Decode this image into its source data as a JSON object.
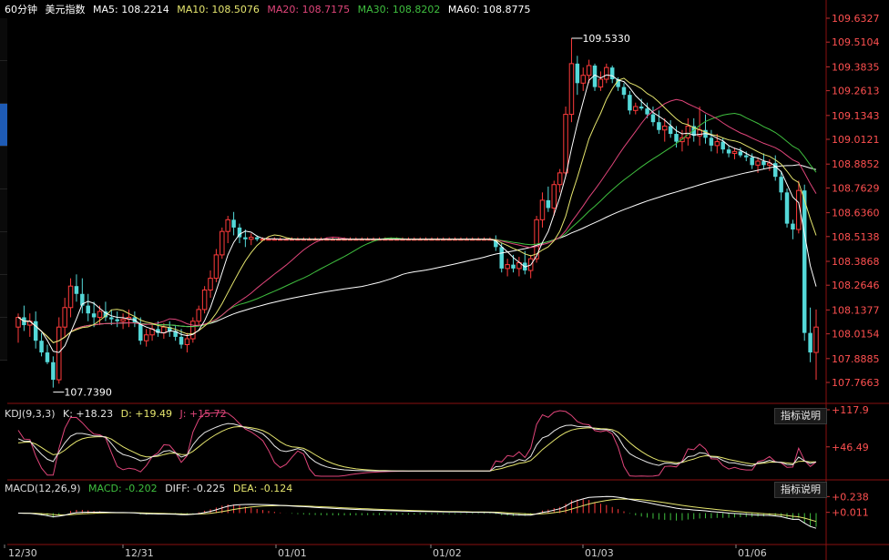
{
  "header": {
    "period": "60分钟",
    "symbol": "美元指数",
    "ma5": "MA5: 108.2214",
    "ma10": "MA10: 108.5076",
    "ma20": "MA20: 108.7175",
    "ma30": "MA30: 108.8202",
    "ma60": "MA60: 108.8775"
  },
  "kdj_header": {
    "name": "KDJ(9,3,3)",
    "k": "K: +18.23",
    "d": "D: +19.49",
    "j": "J: +15.72"
  },
  "macd_header": {
    "name": "MACD(12,26,9)",
    "macd": "MACD: -0.202",
    "diff": "DIFF: -0.225",
    "dea": "DEA: -0.124"
  },
  "indicator_button": "指标说明",
  "price_axis": [
    "109.6327",
    "109.5104",
    "109.3835",
    "109.2613",
    "109.1343",
    "109.0121",
    "108.8852",
    "108.7629",
    "108.6360",
    "108.5138",
    "108.3868",
    "108.2646",
    "108.1377",
    "108.0154",
    "107.8885",
    "107.7663"
  ],
  "kdj_axis": [
    "+117.9",
    "+46.49"
  ],
  "macd_axis": [
    "+0.238",
    "+0.011"
  ],
  "date_axis": [
    "12/30",
    "12/31",
    "01/01",
    "01/02",
    "01/03",
    "01/06"
  ],
  "annotations": {
    "high": "109.5330",
    "low": "107.7390"
  },
  "colors": {
    "up": "#ff3b3b",
    "down": "#54d8d8",
    "ma5": "#ffffff",
    "ma10": "#e6e66e",
    "ma20": "#e0457a",
    "ma30": "#3fbf3f",
    "ma60": "#ffffff",
    "axis": "#ff5050",
    "grid": "#5a0000"
  },
  "chart_data": [
    {
      "type": "candlestick",
      "title": "美元指数 60分钟",
      "x": [
        "12/30",
        "12/31",
        "01/01",
        "01/02",
        "01/03",
        "01/06"
      ],
      "ylim": [
        107.7663,
        109.6327
      ],
      "candles": [
        [
          108.05,
          108.12,
          107.97,
          108.1
        ],
        [
          108.1,
          108.16,
          108.03,
          108.06
        ],
        [
          108.06,
          108.12,
          108.0,
          108.08
        ],
        [
          108.08,
          108.13,
          107.94,
          107.98
        ],
        [
          107.98,
          108.02,
          107.9,
          107.92
        ],
        [
          107.92,
          107.96,
          107.86,
          107.87
        ],
        [
          107.87,
          107.9,
          107.74,
          107.78
        ],
        [
          107.78,
          108.1,
          107.76,
          108.05
        ],
        [
          108.05,
          108.2,
          108.0,
          108.15
        ],
        [
          108.15,
          108.3,
          108.1,
          108.26
        ],
        [
          108.26,
          108.32,
          108.18,
          108.22
        ],
        [
          108.22,
          108.3,
          108.12,
          108.16
        ],
        [
          108.16,
          108.22,
          108.08,
          108.12
        ],
        [
          108.12,
          108.18,
          108.05,
          108.1
        ],
        [
          108.1,
          108.16,
          108.06,
          108.13
        ],
        [
          108.13,
          108.18,
          108.08,
          108.1
        ],
        [
          108.1,
          108.14,
          108.06,
          108.09
        ],
        [
          108.09,
          108.13,
          108.05,
          108.08
        ],
        [
          108.08,
          108.12,
          108.04,
          108.09
        ],
        [
          108.09,
          108.14,
          108.05,
          108.1
        ],
        [
          108.1,
          108.13,
          108.05,
          108.07
        ],
        [
          108.07,
          108.1,
          107.96,
          107.98
        ],
        [
          107.98,
          108.04,
          107.95,
          108.01
        ],
        [
          108.01,
          108.06,
          107.98,
          108.04
        ],
        [
          108.04,
          108.08,
          108.0,
          108.02
        ],
        [
          108.02,
          108.07,
          107.99,
          108.05
        ],
        [
          108.05,
          108.08,
          108.0,
          108.03
        ],
        [
          108.03,
          108.06,
          107.98,
          108.0
        ],
        [
          108.0,
          108.04,
          107.94,
          107.96
        ],
        [
          107.96,
          108.02,
          107.92,
          107.99
        ],
        [
          107.99,
          108.1,
          107.97,
          108.08
        ],
        [
          108.08,
          108.16,
          108.06,
          108.14
        ],
        [
          108.14,
          108.26,
          108.12,
          108.24
        ],
        [
          108.24,
          108.34,
          108.2,
          108.3
        ],
        [
          108.3,
          108.45,
          108.28,
          108.42
        ],
        [
          108.42,
          108.56,
          108.4,
          108.54
        ],
        [
          108.54,
          108.62,
          108.48,
          108.6
        ],
        [
          108.6,
          108.64,
          108.52,
          108.56
        ],
        [
          108.56,
          108.58,
          108.48,
          108.51
        ],
        [
          108.51,
          108.55,
          108.46,
          108.5
        ],
        [
          108.5,
          108.53,
          108.47,
          108.51
        ],
        [
          108.51,
          108.52,
          108.49,
          108.5
        ],
        [
          108.5,
          108.51,
          108.5,
          108.5
        ],
        [
          108.5,
          108.51,
          108.5,
          108.5
        ],
        [
          108.5,
          108.51,
          108.5,
          108.5
        ],
        [
          108.5,
          108.51,
          108.5,
          108.5
        ],
        [
          108.5,
          108.51,
          108.5,
          108.5
        ],
        [
          108.5,
          108.51,
          108.5,
          108.5
        ],
        [
          108.5,
          108.51,
          108.5,
          108.5
        ],
        [
          108.5,
          108.51,
          108.5,
          108.5
        ],
        [
          108.5,
          108.51,
          108.5,
          108.5
        ],
        [
          108.5,
          108.51,
          108.5,
          108.5
        ],
        [
          108.5,
          108.51,
          108.5,
          108.5
        ],
        [
          108.5,
          108.51,
          108.5,
          108.5
        ],
        [
          108.5,
          108.51,
          108.5,
          108.5
        ],
        [
          108.5,
          108.51,
          108.5,
          108.5
        ],
        [
          108.5,
          108.51,
          108.5,
          108.5
        ],
        [
          108.5,
          108.51,
          108.5,
          108.5
        ],
        [
          108.5,
          108.51,
          108.5,
          108.5
        ],
        [
          108.5,
          108.51,
          108.5,
          108.5
        ],
        [
          108.5,
          108.51,
          108.5,
          108.5
        ],
        [
          108.5,
          108.51,
          108.5,
          108.5
        ],
        [
          108.5,
          108.51,
          108.5,
          108.5
        ],
        [
          108.5,
          108.51,
          108.5,
          108.5
        ],
        [
          108.5,
          108.51,
          108.5,
          108.5
        ],
        [
          108.5,
          108.51,
          108.5,
          108.5
        ],
        [
          108.5,
          108.51,
          108.5,
          108.5
        ],
        [
          108.5,
          108.51,
          108.5,
          108.5
        ],
        [
          108.5,
          108.51,
          108.5,
          108.5
        ],
        [
          108.5,
          108.51,
          108.5,
          108.5
        ],
        [
          108.5,
          108.51,
          108.5,
          108.5
        ],
        [
          108.5,
          108.51,
          108.5,
          108.5
        ],
        [
          108.5,
          108.51,
          108.5,
          108.5
        ],
        [
          108.5,
          108.51,
          108.5,
          108.5
        ],
        [
          108.5,
          108.51,
          108.5,
          108.5
        ],
        [
          108.5,
          108.51,
          108.5,
          108.5
        ],
        [
          108.5,
          108.51,
          108.5,
          108.5
        ],
        [
          108.5,
          108.51,
          108.5,
          108.5
        ],
        [
          108.5,
          108.51,
          108.5,
          108.5
        ],
        [
          108.5,
          108.51,
          108.5,
          108.5
        ],
        [
          108.5,
          108.51,
          108.5,
          108.5
        ],
        [
          108.5,
          108.51,
          108.5,
          108.5
        ],
        [
          108.5,
          108.52,
          108.44,
          108.46
        ],
        [
          108.46,
          108.48,
          108.33,
          108.35
        ],
        [
          108.35,
          108.4,
          108.31,
          108.37
        ],
        [
          108.37,
          108.42,
          108.33,
          108.35
        ],
        [
          108.35,
          108.41,
          108.31,
          108.38
        ],
        [
          108.38,
          108.44,
          108.32,
          108.34
        ],
        [
          108.34,
          108.42,
          108.3,
          108.4
        ],
        [
          108.4,
          108.62,
          108.38,
          108.6
        ],
        [
          108.6,
          108.74,
          108.56,
          108.7
        ],
        [
          108.7,
          108.77,
          108.64,
          108.66
        ],
        [
          108.66,
          108.8,
          108.62,
          108.78
        ],
        [
          108.78,
          108.86,
          108.74,
          108.84
        ],
        [
          108.84,
          109.18,
          108.82,
          109.14
        ],
        [
          109.14,
          109.53,
          109.1,
          109.4
        ],
        [
          109.4,
          109.44,
          109.24,
          109.3
        ],
        [
          109.3,
          109.38,
          109.26,
          109.34
        ],
        [
          109.34,
          109.42,
          109.3,
          109.39
        ],
        [
          109.39,
          109.4,
          109.26,
          109.28
        ],
        [
          109.28,
          109.36,
          109.26,
          109.32
        ],
        [
          109.32,
          109.4,
          109.3,
          109.38
        ],
        [
          109.38,
          109.39,
          109.3,
          109.32
        ],
        [
          109.32,
          109.33,
          109.26,
          109.28
        ],
        [
          109.28,
          109.3,
          109.22,
          109.24
        ],
        [
          109.24,
          109.26,
          109.14,
          109.16
        ],
        [
          109.16,
          109.2,
          109.14,
          109.18
        ],
        [
          109.18,
          109.22,
          109.16,
          109.17
        ],
        [
          109.17,
          109.2,
          109.12,
          109.14
        ],
        [
          109.14,
          109.18,
          109.08,
          109.1
        ],
        [
          109.1,
          109.16,
          109.04,
          109.06
        ],
        [
          109.06,
          109.12,
          109.0,
          109.08
        ],
        [
          109.08,
          109.11,
          109.02,
          109.04
        ],
        [
          109.04,
          109.08,
          108.97,
          109.0
        ],
        [
          109.0,
          109.06,
          108.95,
          109.02
        ],
        [
          109.02,
          109.12,
          108.98,
          109.08
        ],
        [
          109.08,
          109.12,
          109.0,
          109.03
        ],
        [
          109.03,
          109.18,
          108.98,
          109.06
        ],
        [
          109.06,
          109.14,
          108.99,
          109.02
        ],
        [
          109.02,
          109.06,
          108.95,
          108.98
        ],
        [
          108.98,
          109.04,
          108.94,
          109.0
        ],
        [
          109.0,
          109.02,
          108.94,
          108.96
        ],
        [
          108.96,
          108.98,
          108.92,
          108.94
        ],
        [
          108.94,
          108.97,
          108.91,
          108.95
        ],
        [
          108.95,
          108.97,
          108.92,
          108.93
        ],
        [
          108.93,
          108.95,
          108.9,
          108.92
        ],
        [
          108.92,
          108.94,
          108.86,
          108.88
        ],
        [
          108.88,
          108.92,
          108.84,
          108.9
        ],
        [
          108.9,
          108.94,
          108.86,
          108.88
        ],
        [
          108.88,
          108.91,
          108.85,
          108.89
        ],
        [
          108.89,
          108.93,
          108.8,
          108.82
        ],
        [
          108.82,
          108.85,
          108.7,
          108.74
        ],
        [
          108.74,
          108.76,
          108.56,
          108.58
        ],
        [
          108.58,
          108.6,
          108.5,
          108.55
        ],
        [
          108.55,
          108.8,
          108.53,
          108.75
        ],
        [
          108.75,
          108.78,
          107.98,
          108.02
        ],
        [
          108.02,
          108.15,
          107.87,
          107.92
        ],
        [
          107.92,
          108.14,
          107.78,
          108.05
        ]
      ],
      "ma": {
        "MA5": 108.2214,
        "MA10": 108.5076,
        "MA20": 108.7175,
        "MA30": 108.8202,
        "MA60": 108.8775
      }
    },
    {
      "type": "line",
      "title": "KDJ(9,3,3)",
      "series": [
        {
          "name": "K",
          "last": 18.23
        },
        {
          "name": "D",
          "last": 19.49
        },
        {
          "name": "J",
          "last": 15.72
        }
      ],
      "ylim": [
        0,
        117.9
      ]
    },
    {
      "type": "bar",
      "title": "MACD(12,26,9)",
      "series": [
        {
          "name": "MACD",
          "last": -0.202
        },
        {
          "name": "DIFF",
          "last": -0.225
        },
        {
          "name": "DEA",
          "last": -0.124
        }
      ]
    }
  ]
}
